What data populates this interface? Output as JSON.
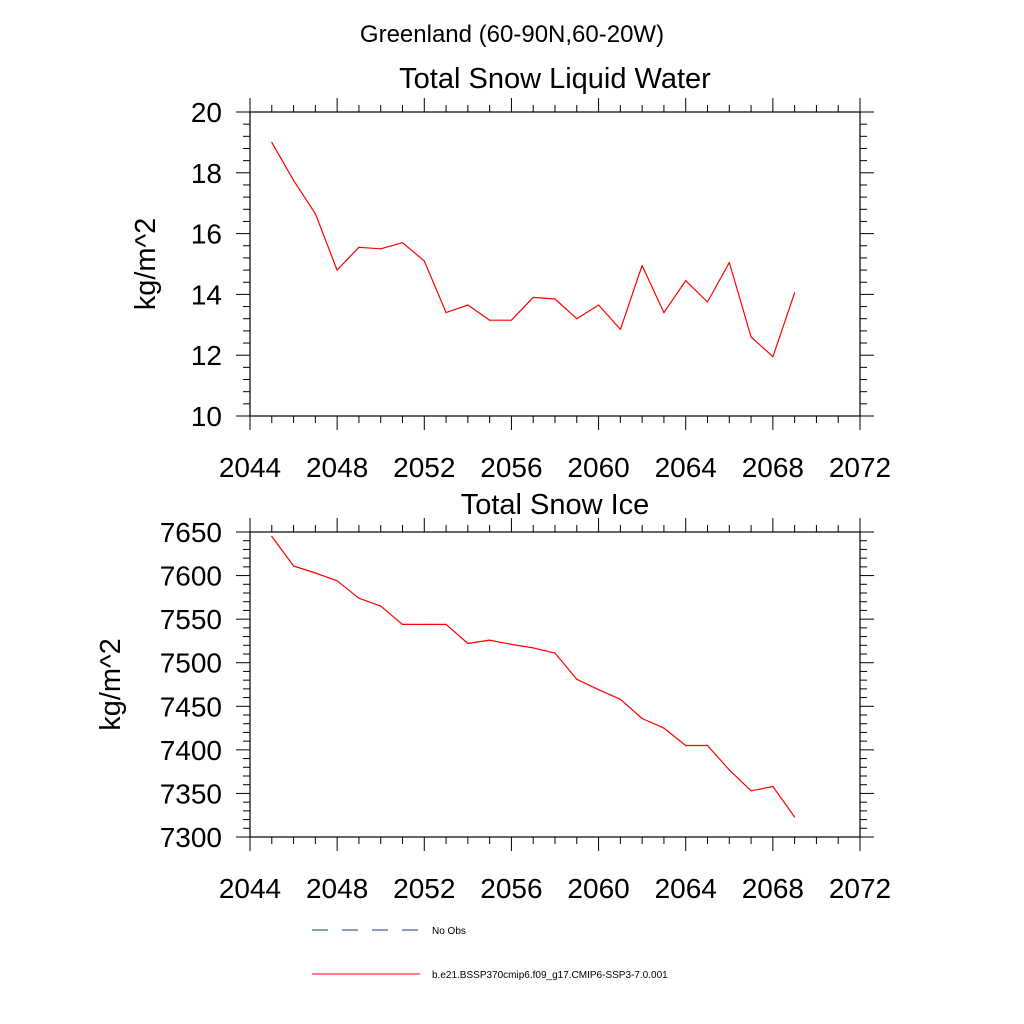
{
  "figure_title": "Greenland (60-90N,60-20W)",
  "chart_data": [
    {
      "type": "line",
      "title": "Total Snow Liquid Water",
      "xlabel": "",
      "ylabel": "kg/m^2",
      "xlim": [
        2044,
        2072
      ],
      "ylim": [
        10,
        20
      ],
      "xticks": [
        2044,
        2048,
        2052,
        2056,
        2060,
        2064,
        2068,
        2072
      ],
      "yticks": [
        10,
        12,
        14,
        16,
        18,
        20
      ],
      "grid": false,
      "series": [
        {
          "name": "b.e21.BSSP370cmip6.f09_g17.CMIP6-SSP3-7.0.001",
          "color": "#ff0000",
          "x": [
            2045,
            2046,
            2047,
            2048,
            2049,
            2050,
            2051,
            2052,
            2053,
            2054,
            2055,
            2056,
            2057,
            2058,
            2059,
            2060,
            2061,
            2062,
            2063,
            2064,
            2065,
            2066,
            2067,
            2068,
            2069
          ],
          "y": [
            19.0,
            17.75,
            16.65,
            14.8,
            15.55,
            15.5,
            15.7,
            15.1,
            13.4,
            13.65,
            13.15,
            13.15,
            13.9,
            13.85,
            13.2,
            13.65,
            12.85,
            14.95,
            13.4,
            14.45,
            13.75,
            15.05,
            12.6,
            11.95,
            14.05
          ]
        }
      ]
    },
    {
      "type": "line",
      "title": "Total Snow Ice",
      "xlabel": "",
      "ylabel": "kg/m^2",
      "xlim": [
        2044,
        2072
      ],
      "ylim": [
        7300,
        7650
      ],
      "xticks": [
        2044,
        2048,
        2052,
        2056,
        2060,
        2064,
        2068,
        2072
      ],
      "yticks": [
        7300,
        7350,
        7400,
        7450,
        7500,
        7550,
        7600,
        7650
      ],
      "grid": false,
      "series": [
        {
          "name": "b.e21.BSSP370cmip6.f09_g17.CMIP6-SSP3-7.0.001",
          "color": "#ff0000",
          "x": [
            2045,
            2046,
            2047,
            2048,
            2049,
            2050,
            2051,
            2052,
            2053,
            2054,
            2055,
            2056,
            2057,
            2058,
            2059,
            2060,
            2061,
            2062,
            2063,
            2064,
            2065,
            2066,
            2067,
            2068,
            2069
          ],
          "y": [
            7645,
            7611,
            7603,
            7594,
            7574,
            7565,
            7544,
            7544,
            7544,
            7522,
            7526,
            7521,
            7517,
            7511,
            7481,
            7469,
            7458,
            7436,
            7425,
            7405,
            7405,
            7377,
            7353,
            7358,
            7323
          ]
        }
      ]
    }
  ],
  "legend": {
    "position": "bottom",
    "items": [
      {
        "label": "No Obs",
        "style": "dashed",
        "color": "#1f3a8a"
      },
      {
        "label": "b.e21.BSSP370cmip6.f09_g17.CMIP6-SSP3-7.0.001",
        "style": "solid",
        "color": "#ff0000"
      }
    ]
  }
}
